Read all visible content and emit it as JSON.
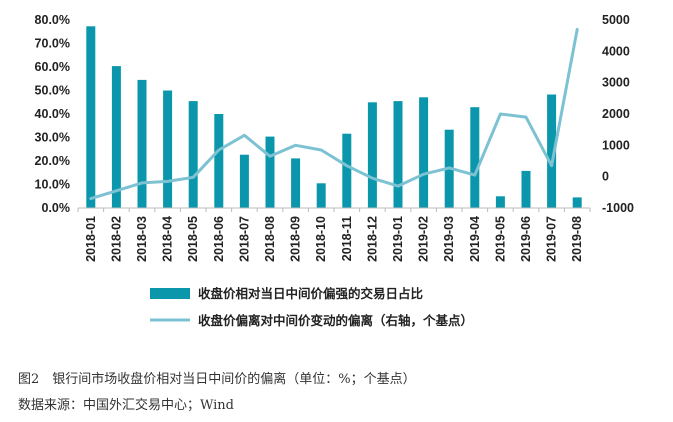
{
  "chart_data": {
    "type": "bar+line",
    "categories": [
      "2018-01",
      "2018-02",
      "2018-03",
      "2018-04",
      "2018-05",
      "2018-06",
      "2018-07",
      "2018-08",
      "2018-09",
      "2018-10",
      "2018-11",
      "2018-12",
      "2019-01",
      "2019-02",
      "2019-03",
      "2019-04",
      "2019-05",
      "2019-06",
      "2019-07",
      "2019-08"
    ],
    "series": [
      {
        "name": "收盘价相对当日中间价偏强的交易日占比",
        "type": "bar",
        "axis": "left",
        "values": [
          77.3,
          60.4,
          54.5,
          50.0,
          45.5,
          40.0,
          22.7,
          30.4,
          21.1,
          10.5,
          31.6,
          45.0,
          45.5,
          47.1,
          33.3,
          42.9,
          5.0,
          15.8,
          48.3,
          4.5
        ]
      },
      {
        "name": "收盘价偏离对中间价变动的偏离（右轴，个基点）",
        "type": "line",
        "axis": "right",
        "values": [
          -700,
          -450,
          -200,
          -150,
          -20,
          850,
          1320,
          650,
          1000,
          850,
          350,
          -50,
          -300,
          80,
          280,
          50,
          2000,
          1900,
          350,
          4700
        ]
      }
    ],
    "y_left": {
      "min": 0,
      "max": 80,
      "step": 10,
      "tick_labels": [
        "0.0%",
        "10.0%",
        "20.0%",
        "30.0%",
        "40.0%",
        "50.0%",
        "60.0%",
        "70.0%",
        "80.0%"
      ]
    },
    "y_right": {
      "min": -1000,
      "max": 5000,
      "step": 1000,
      "tick_labels": [
        "-1000",
        "0",
        "1000",
        "2000",
        "3000",
        "4000",
        "5000"
      ]
    },
    "legend": [
      "收盘价相对当日中间价偏强的交易日占比",
      "收盘价偏离对中间价变动的偏离（右轴，个基点）"
    ],
    "legend_placement": "bottom",
    "grid": false,
    "colors": {
      "bar": "#0a97ab",
      "line": "#7cc2d2",
      "axis": "#bbbbbb"
    }
  },
  "caption": {
    "figure": "图2　银行间市场收盘价相对当日中间价的偏离（单位：%；个基点）",
    "source": "数据来源：中国外汇交易中心；Wind"
  }
}
